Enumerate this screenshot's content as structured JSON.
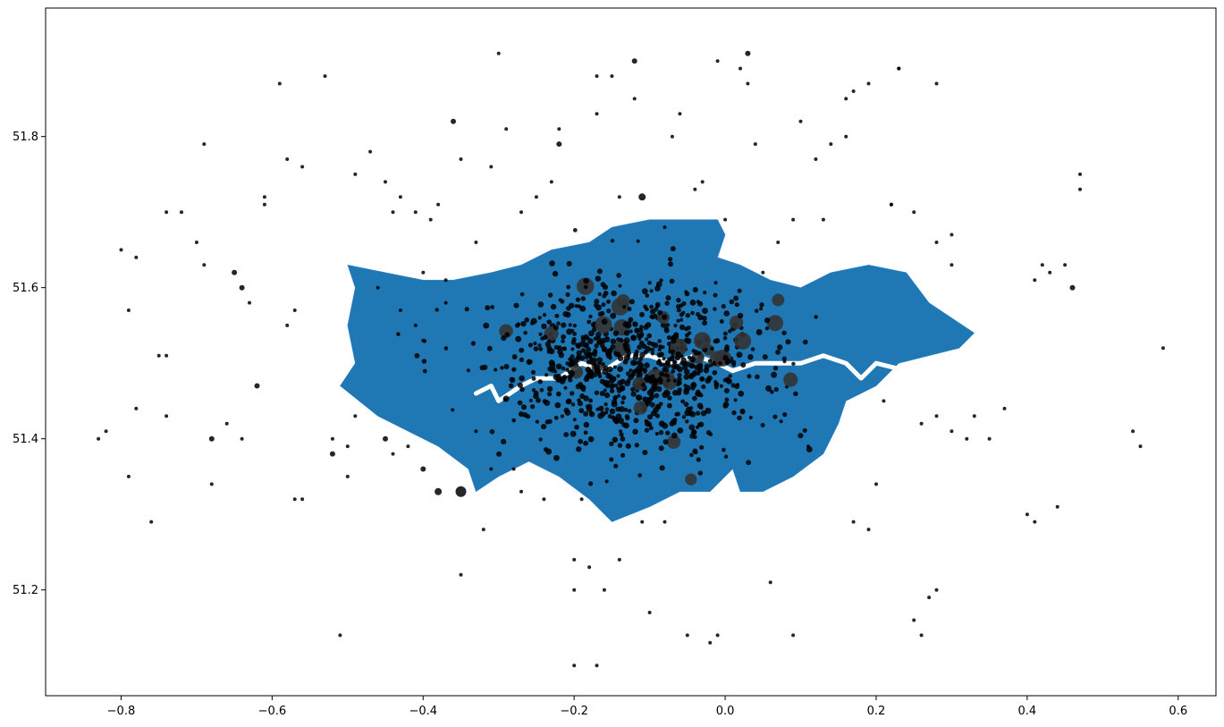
{
  "chart_data": {
    "type": "scatter",
    "title": "",
    "xlabel": "",
    "ylabel": "",
    "xlim": [
      -0.9,
      0.65
    ],
    "ylim": [
      51.06,
      51.97
    ],
    "x_ticks": [
      -0.8,
      -0.6,
      -0.4,
      -0.2,
      0.0,
      0.2,
      0.4,
      0.6
    ],
    "y_ticks": [
      51.2,
      51.4,
      51.6,
      51.8
    ],
    "x_tick_labels": [
      "−0.8",
      "−0.6",
      "−0.4",
      "−0.2",
      "0.0",
      "0.2",
      "0.4",
      "0.6"
    ],
    "y_tick_labels": [
      "51.2",
      "51.4",
      "51.6",
      "51.8"
    ],
    "grid": false,
    "colors": {
      "region_fill": "#1f77b4",
      "points": "#000000",
      "river": "#ffffff"
    },
    "region_boundary": [
      [
        -0.51,
        51.47
      ],
      [
        -0.49,
        51.5
      ],
      [
        -0.5,
        51.55
      ],
      [
        -0.49,
        51.6
      ],
      [
        -0.5,
        51.63
      ],
      [
        -0.45,
        51.62
      ],
      [
        -0.4,
        51.61
      ],
      [
        -0.36,
        51.61
      ],
      [
        -0.31,
        51.62
      ],
      [
        -0.27,
        51.63
      ],
      [
        -0.23,
        51.65
      ],
      [
        -0.18,
        51.66
      ],
      [
        -0.15,
        51.68
      ],
      [
        -0.1,
        51.69
      ],
      [
        -0.05,
        51.69
      ],
      [
        -0.01,
        51.69
      ],
      [
        0.0,
        51.67
      ],
      [
        -0.01,
        51.64
      ],
      [
        0.02,
        51.63
      ],
      [
        0.06,
        51.61
      ],
      [
        0.1,
        51.6
      ],
      [
        0.14,
        51.62
      ],
      [
        0.19,
        51.63
      ],
      [
        0.24,
        51.62
      ],
      [
        0.27,
        51.58
      ],
      [
        0.3,
        51.56
      ],
      [
        0.33,
        51.54
      ],
      [
        0.31,
        51.52
      ],
      [
        0.23,
        51.5
      ],
      [
        0.2,
        51.47
      ],
      [
        0.16,
        51.45
      ],
      [
        0.15,
        51.42
      ],
      [
        0.13,
        51.38
      ],
      [
        0.09,
        51.35
      ],
      [
        0.05,
        51.33
      ],
      [
        0.02,
        51.33
      ],
      [
        0.01,
        51.36
      ],
      [
        -0.02,
        51.33
      ],
      [
        -0.06,
        51.33
      ],
      [
        -0.1,
        51.31
      ],
      [
        -0.15,
        51.29
      ],
      [
        -0.18,
        51.32
      ],
      [
        -0.22,
        51.35
      ],
      [
        -0.26,
        51.37
      ],
      [
        -0.3,
        51.35
      ],
      [
        -0.33,
        51.33
      ],
      [
        -0.34,
        51.36
      ],
      [
        -0.38,
        51.39
      ],
      [
        -0.42,
        51.41
      ],
      [
        -0.46,
        51.43
      ]
    ],
    "river_thames": [
      [
        -0.33,
        51.46
      ],
      [
        -0.31,
        51.47
      ],
      [
        -0.3,
        51.45
      ],
      [
        -0.27,
        51.47
      ],
      [
        -0.25,
        51.48
      ],
      [
        -0.22,
        51.48
      ],
      [
        -0.19,
        51.5
      ],
      [
        -0.16,
        51.49
      ],
      [
        -0.13,
        51.51
      ],
      [
        -0.1,
        51.51
      ],
      [
        -0.07,
        51.5
      ],
      [
        -0.04,
        51.51
      ],
      [
        -0.01,
        51.5
      ],
      [
        0.01,
        51.49
      ],
      [
        0.04,
        51.5
      ],
      [
        0.07,
        51.5
      ],
      [
        0.1,
        51.5
      ],
      [
        0.13,
        51.51
      ],
      [
        0.16,
        51.5
      ],
      [
        0.18,
        51.48
      ],
      [
        0.2,
        51.5
      ],
      [
        0.24,
        51.49
      ]
    ],
    "series": [
      {
        "x": [
          -0.52,
          -0.3,
          0.03,
          -0.12,
          0.23,
          -0.17,
          -0.12,
          -0.36,
          -0.47,
          0.04,
          -0.58,
          -0.56,
          -0.49,
          -0.45,
          -0.38,
          -0.44,
          -0.61,
          -0.61,
          -0.65,
          -0.64,
          -0.74,
          -0.72,
          -0.78,
          -0.8,
          -0.79,
          -0.7,
          -0.69,
          -0.63,
          -0.57,
          -0.58,
          -0.75,
          -0.74,
          -0.74,
          -0.78,
          -0.79,
          -0.76,
          -0.68,
          -0.68,
          -0.64,
          -0.57,
          -0.56,
          -0.52,
          -0.5,
          -0.5,
          -0.49,
          -0.45,
          -0.44,
          -0.42,
          -0.4,
          -0.38,
          -0.35,
          -0.32,
          -0.27,
          -0.19,
          -0.2,
          -0.2,
          -0.18,
          -0.16,
          -0.14,
          -0.1,
          -0.05,
          -0.01,
          0.06,
          0.09,
          0.11,
          0.2,
          0.19,
          0.17,
          0.25,
          0.26,
          0.27,
          0.28,
          0.32,
          0.33,
          0.35,
          0.37,
          0.4,
          0.41,
          0.44,
          0.45,
          0.54,
          0.55,
          0.58,
          0.47,
          0.47,
          0.42,
          0.43,
          0.46,
          0.41,
          0.3,
          0.3,
          0.28,
          0.25,
          0.22,
          0.22,
          0.13,
          0.12,
          0.16,
          0.17,
          0.14,
          0.05,
          0.07,
          0.09,
          -0.03,
          -0.04,
          -0.07,
          -0.11,
          -0.17,
          -0.22,
          -0.27,
          -0.31,
          -0.35,
          -0.39,
          -0.41,
          -0.43,
          -0.29,
          -0.22,
          -0.14,
          -0.08,
          0.0,
          0.03,
          -0.15,
          -0.23,
          -0.25,
          -0.33,
          -0.37,
          -0.4,
          0.1,
          0.16,
          0.19,
          0.23,
          0.28,
          -0.62,
          -0.66,
          -0.82,
          -0.83,
          -0.69,
          -0.59,
          -0.53,
          -0.51,
          -0.35,
          -0.31,
          -0.33,
          -0.28,
          -0.24,
          -0.2,
          -0.17,
          -0.11,
          -0.08,
          -0.02,
          -0.01,
          0.02,
          -0.06,
          0.26,
          0.28,
          0.3,
          0.21,
          -0.46,
          -0.43,
          -0.41,
          -0.4,
          -0.37
        ],
        "y": [
          51.38,
          51.91,
          51.91,
          51.9,
          51.89,
          51.88,
          51.85,
          51.82,
          51.78,
          51.79,
          51.77,
          51.76,
          51.75,
          51.74,
          51.71,
          51.7,
          51.72,
          51.71,
          51.62,
          51.6,
          51.7,
          51.7,
          51.64,
          51.65,
          51.57,
          51.66,
          51.63,
          51.58,
          51.57,
          51.55,
          51.51,
          51.51,
          51.43,
          51.44,
          51.35,
          51.29,
          51.4,
          51.34,
          51.4,
          51.32,
          51.32,
          51.4,
          51.39,
          51.35,
          51.43,
          51.4,
          51.38,
          51.39,
          51.36,
          51.33,
          51.33,
          51.28,
          51.33,
          51.32,
          51.24,
          51.2,
          51.23,
          51.2,
          51.24,
          51.17,
          51.14,
          51.14,
          51.21,
          51.14,
          51.39,
          51.34,
          51.28,
          51.29,
          51.16,
          51.14,
          51.19,
          51.2,
          51.4,
          51.43,
          51.4,
          51.44,
          51.3,
          51.29,
          51.31,
          51.63,
          51.41,
          51.39,
          51.52,
          51.75,
          51.73,
          51.63,
          51.62,
          51.6,
          51.61,
          51.67,
          51.63,
          51.66,
          51.7,
          51.71,
          51.71,
          51.69,
          51.77,
          51.8,
          51.86,
          51.79,
          51.62,
          51.66,
          51.69,
          51.74,
          51.73,
          51.8,
          51.72,
          51.83,
          51.79,
          51.7,
          51.76,
          51.77,
          51.69,
          51.7,
          51.72,
          51.81,
          51.81,
          51.72,
          51.68,
          51.69,
          51.87,
          51.88,
          51.74,
          51.72,
          51.66,
          51.61,
          51.62,
          51.82,
          51.85,
          51.87,
          51.89,
          51.87,
          51.47,
          51.42,
          51.41,
          51.4,
          51.79,
          51.87,
          51.88,
          51.14,
          51.22,
          51.36,
          51.41,
          51.36,
          51.32,
          51.1,
          51.1,
          51.29,
          51.29,
          51.13,
          51.9,
          51.89,
          51.83,
          51.42,
          51.43,
          51.41,
          51.45,
          51.6,
          51.57,
          51.55,
          51.53,
          51.58
        ],
        "sizes": [
          3,
          2,
          3,
          3,
          2,
          2,
          2,
          3,
          2,
          2,
          2,
          2,
          2,
          2,
          2,
          2,
          2,
          2,
          3,
          3,
          2,
          2,
          2,
          2,
          2,
          2,
          2,
          2,
          2,
          2,
          2,
          2,
          2,
          2,
          2,
          2,
          3,
          2,
          2,
          2,
          2,
          2,
          2,
          2,
          2,
          3,
          2,
          2,
          3,
          4,
          6,
          2,
          2,
          2,
          2,
          2,
          2,
          2,
          2,
          2,
          2,
          2,
          2,
          2,
          2,
          2,
          2,
          2,
          2,
          2,
          2,
          2,
          2,
          2,
          2,
          2,
          2,
          2,
          2,
          2,
          2,
          2,
          2,
          2,
          2,
          2,
          2,
          3,
          2,
          2,
          2,
          2,
          2,
          2,
          2,
          2,
          2,
          2,
          2,
          2,
          2,
          2,
          2,
          2,
          2,
          2,
          4,
          2,
          3,
          2,
          2,
          2,
          2,
          2,
          2,
          2,
          2,
          2,
          2,
          2,
          2,
          2,
          2,
          2,
          2,
          2,
          2,
          2,
          2,
          2,
          2,
          2,
          3,
          2,
          2,
          2,
          2,
          2,
          2,
          2,
          2,
          2,
          2,
          2,
          2,
          2,
          2,
          2,
          2,
          2,
          2,
          2,
          2,
          2,
          2,
          2,
          2,
          2,
          2,
          2,
          2,
          2
        ],
        "cluster": {
          "center": [
            -0.12,
            51.5
          ],
          "spread": [
            0.09,
            0.055
          ],
          "count": 900
        }
      }
    ]
  }
}
